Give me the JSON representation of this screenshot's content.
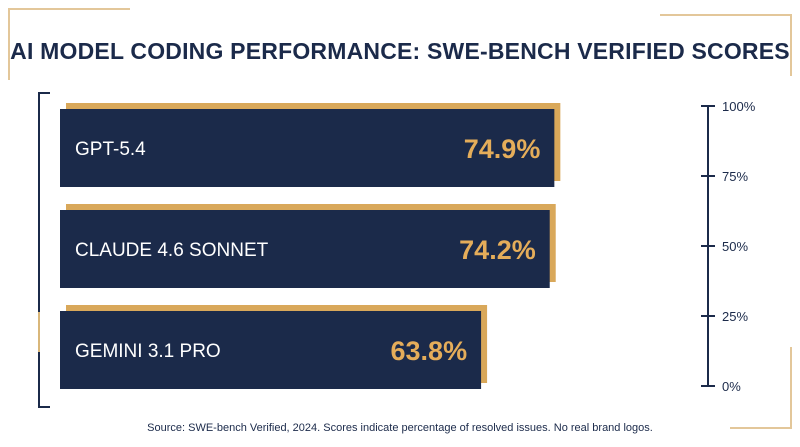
{
  "title": "AI MODEL CODING PERFORMANCE: SWE-BENCH VERIFIED SCORES",
  "source": "Source: SWE-bench Verified, 2024. Scores indicate percentage of resolved issues. No real brand logos.",
  "colors": {
    "bar": "#1b2a4a",
    "accent": "#d9a85a",
    "value_text": "#e5ad5a",
    "label_text": "#ffffff"
  },
  "chart_data": {
    "type": "bar",
    "orientation": "horizontal",
    "categories": [
      "GPT-5.4",
      "CLAUDE 4.6 SONNET",
      "GEMINI 3.1 PRO"
    ],
    "values": [
      74.9,
      74.2,
      63.8
    ],
    "value_labels": [
      "74.9%",
      "74.2%",
      "63.8%"
    ],
    "axis": {
      "ticks": [
        "0%",
        "25%",
        "50%",
        "75%",
        "100%"
      ],
      "range": [
        0,
        100
      ]
    },
    "grid": false
  }
}
